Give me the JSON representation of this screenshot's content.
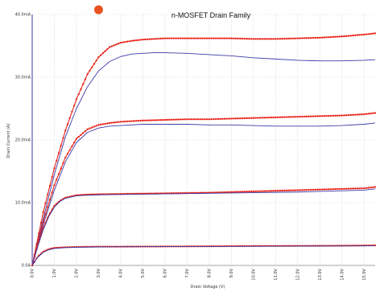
{
  "chart_data": {
    "type": "line",
    "title": "n-MOSFET Drain Family",
    "xlabel": "Drain Voltage (V)",
    "ylabel": "Drain Current (A)",
    "xlim": [
      0,
      15.5
    ],
    "ylim": [
      0,
      40
    ],
    "x_ticks": [
      0,
      1,
      2,
      3,
      4,
      5,
      6,
      7,
      8,
      9,
      10,
      11,
      12,
      13,
      14,
      15
    ],
    "x_tick_labels": [
      "0.0V",
      "1.0V",
      "2.0V",
      "3.0V",
      "4.0V",
      "5.0V",
      "6.0V",
      "7.0V",
      "8.0V",
      "9.0V",
      "10.0V",
      "11.0V",
      "12.0V",
      "13.0V",
      "14.0V",
      "15.0V"
    ],
    "y_ticks": [
      0,
      10,
      20,
      30,
      40
    ],
    "y_tick_labels": [
      "0.0A",
      "10.0mA",
      "20.0mA",
      "30.0mA",
      "40.0mA"
    ],
    "grid": true,
    "colors": {
      "measured": "#e8231a",
      "simulated": "#3a3aa8",
      "marker": "#e8531f",
      "grid": "#d4d4d4",
      "axis": "#3a3aa8"
    },
    "series": [
      {
        "group": "measured",
        "x": [
          0,
          0.5,
          1,
          1.5,
          2,
          2.5,
          3,
          3.5,
          4,
          4.5,
          5,
          6,
          7,
          8,
          9,
          10,
          11,
          12,
          13,
          14,
          15,
          15.5
        ],
        "values": [
          0,
          8.5,
          15.5,
          21.5,
          26.5,
          30.5,
          33.2,
          34.8,
          35.5,
          35.8,
          36,
          36.2,
          36.2,
          36.2,
          36.2,
          36.1,
          36.1,
          36.2,
          36.3,
          36.5,
          36.8,
          37
        ]
      },
      {
        "group": "simulated",
        "x": [
          0,
          0.5,
          1,
          1.5,
          2,
          2.5,
          3,
          3.5,
          4,
          4.5,
          5,
          5.5,
          6,
          7,
          8,
          9,
          10,
          11,
          12,
          13,
          14,
          15,
          15.5
        ],
        "values": [
          0,
          7.5,
          14.5,
          20.5,
          25,
          28.5,
          31,
          32.5,
          33.3,
          33.7,
          33.8,
          33.9,
          33.9,
          33.8,
          33.6,
          33.4,
          33.1,
          32.9,
          32.7,
          32.6,
          32.6,
          32.7,
          32.8
        ]
      },
      {
        "group": "measured",
        "x": [
          0,
          0.5,
          1,
          1.5,
          2,
          2.5,
          3,
          3.5,
          4,
          5,
          6,
          7,
          8,
          9,
          10,
          11,
          12,
          13,
          14,
          15,
          15.5
        ],
        "values": [
          0,
          7,
          12.8,
          17.2,
          20.2,
          21.7,
          22.4,
          22.7,
          22.9,
          23.1,
          23.2,
          23.3,
          23.3,
          23.4,
          23.5,
          23.6,
          23.7,
          23.8,
          23.9,
          24.1,
          24.3
        ]
      },
      {
        "group": "simulated",
        "x": [
          0,
          0.5,
          1,
          1.5,
          2,
          2.5,
          3,
          3.5,
          4,
          5,
          6,
          7,
          8,
          9,
          10,
          11,
          12,
          13,
          14,
          15,
          15.5
        ],
        "values": [
          0,
          6.5,
          12,
          16.5,
          19.6,
          21.2,
          21.9,
          22.2,
          22.3,
          22.5,
          22.5,
          22.5,
          22.4,
          22.4,
          22.3,
          22.2,
          22.2,
          22.2,
          22.3,
          22.5,
          22.7
        ]
      },
      {
        "group": "measured",
        "x": [
          0,
          0.25,
          0.5,
          0.75,
          1,
          1.25,
          1.5,
          2,
          2.5,
          3,
          4,
          5,
          6,
          7,
          8,
          9,
          10,
          11,
          12,
          13,
          14,
          15,
          15.5
        ],
        "values": [
          0,
          3.2,
          6,
          8,
          9.5,
          10.3,
          10.8,
          11.2,
          11.3,
          11.35,
          11.4,
          11.45,
          11.5,
          11.55,
          11.6,
          11.7,
          11.8,
          11.9,
          12,
          12.1,
          12.2,
          12.3,
          12.5
        ]
      },
      {
        "group": "simulated",
        "x": [
          0,
          0.25,
          0.5,
          0.75,
          1,
          1.25,
          1.5,
          2,
          2.5,
          3,
          4,
          5,
          6,
          7,
          8,
          9,
          10,
          11,
          12,
          13,
          14,
          15,
          15.5
        ],
        "values": [
          0,
          3,
          5.7,
          7.8,
          9.3,
          10.2,
          10.7,
          11.1,
          11.2,
          11.25,
          11.3,
          11.35,
          11.4,
          11.45,
          11.5,
          11.55,
          11.6,
          11.65,
          11.7,
          11.8,
          11.9,
          12,
          12.2
        ]
      },
      {
        "group": "measured",
        "x": [
          0,
          0.25,
          0.5,
          0.75,
          1,
          1.5,
          2,
          3,
          4,
          6,
          8,
          10,
          12,
          14,
          15,
          15.5
        ],
        "values": [
          0,
          1.4,
          2.2,
          2.6,
          2.8,
          2.9,
          2.95,
          3,
          3,
          3.02,
          3.05,
          3.1,
          3.12,
          3.15,
          3.18,
          3.2
        ]
      },
      {
        "group": "simulated",
        "x": [
          0,
          0.25,
          0.5,
          0.75,
          1,
          1.5,
          2,
          3,
          4,
          6,
          8,
          10,
          12,
          14,
          15,
          15.5
        ],
        "values": [
          0,
          1.3,
          2.1,
          2.5,
          2.7,
          2.85,
          2.9,
          2.95,
          2.97,
          3,
          3.02,
          3.05,
          3.07,
          3.1,
          3.12,
          3.15
        ]
      }
    ],
    "marker": {
      "x": 3.0,
      "y": 40.5
    }
  }
}
